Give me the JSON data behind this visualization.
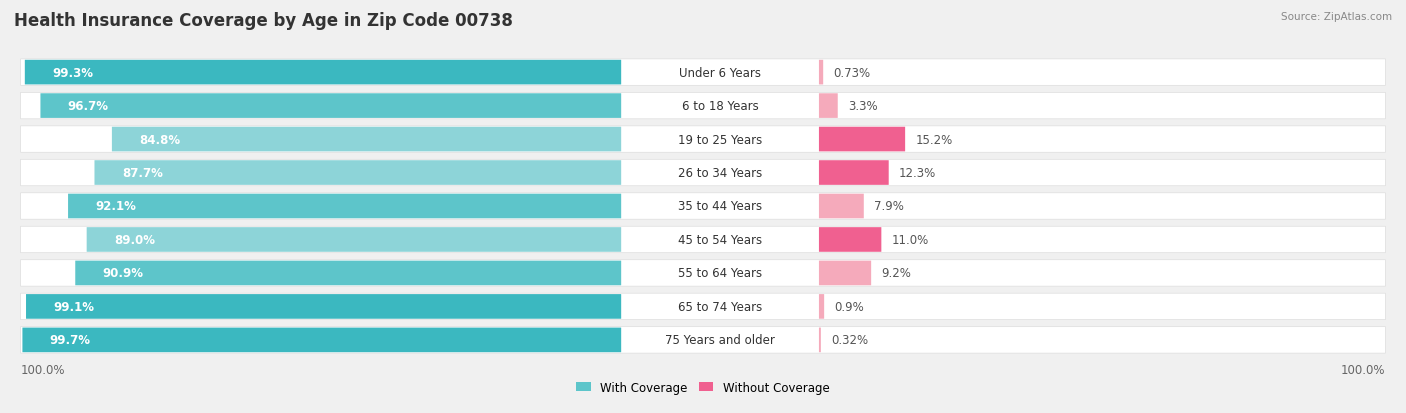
{
  "title": "Health Insurance Coverage by Age in Zip Code 00738",
  "source": "Source: ZipAtlas.com",
  "categories": [
    "Under 6 Years",
    "6 to 18 Years",
    "19 to 25 Years",
    "26 to 34 Years",
    "35 to 44 Years",
    "45 to 54 Years",
    "55 to 64 Years",
    "65 to 74 Years",
    "75 Years and older"
  ],
  "with_coverage": [
    99.3,
    96.7,
    84.8,
    87.7,
    92.1,
    89.0,
    90.9,
    99.1,
    99.7
  ],
  "without_coverage": [
    0.73,
    3.3,
    15.2,
    12.3,
    7.9,
    11.0,
    9.2,
    0.9,
    0.32
  ],
  "with_labels": [
    "99.3%",
    "96.7%",
    "84.8%",
    "87.7%",
    "92.1%",
    "89.0%",
    "90.9%",
    "99.1%",
    "99.7%"
  ],
  "without_labels": [
    "0.73%",
    "3.3%",
    "15.2%",
    "12.3%",
    "7.9%",
    "11.0%",
    "9.2%",
    "0.9%",
    "0.32%"
  ],
  "color_with_dark": "#3BB8C0",
  "color_with_mid": "#5DC5CA",
  "color_with_light": "#8DD4D8",
  "color_without_dark": "#F06090",
  "color_without_light": "#F5AABB",
  "bg_color": "#F0F0F0",
  "row_bg": "#FFFFFF",
  "legend_with": "With Coverage",
  "legend_without": "Without Coverage",
  "x_left_label": "100.0%",
  "x_right_label": "100.0%",
  "title_fontsize": 12,
  "bar_fontsize": 8.5,
  "cat_fontsize": 8.5,
  "source_fontsize": 7.5
}
